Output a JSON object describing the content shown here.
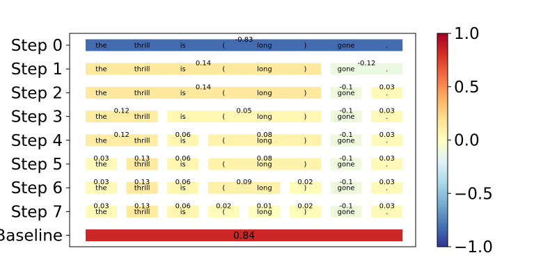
{
  "chart_data": {
    "type": "heatmap",
    "title": "",
    "xlabel": "",
    "ylabel": "",
    "tokens": [
      "the",
      "thrill",
      "is",
      "(",
      "long",
      ")",
      "gone",
      "."
    ],
    "rows": [
      {
        "label": "Step 0",
        "segments": [
          {
            "start": 0,
            "end": 7,
            "value": -0.83,
            "value_label": "-0.83"
          }
        ]
      },
      {
        "label": "Step 1",
        "segments": [
          {
            "start": 0,
            "end": 5,
            "value": 0.14,
            "value_label": "0.14"
          },
          {
            "start": 6,
            "end": 7,
            "value": -0.12,
            "value_label": "-0.12"
          }
        ]
      },
      {
        "label": "Step 2",
        "segments": [
          {
            "start": 0,
            "end": 5,
            "value": 0.14,
            "value_label": "0.14"
          },
          {
            "start": 6,
            "end": 6,
            "value": -0.1,
            "value_label": "-0.1"
          },
          {
            "start": 7,
            "end": 7,
            "value": 0.03,
            "value_label": "0.03"
          }
        ]
      },
      {
        "label": "Step 3",
        "segments": [
          {
            "start": 0,
            "end": 1,
            "value": 0.12,
            "value_label": "0.12"
          },
          {
            "start": 2,
            "end": 5,
            "value": 0.05,
            "value_label": "0.05"
          },
          {
            "start": 6,
            "end": 6,
            "value": -0.1,
            "value_label": "-0.1"
          },
          {
            "start": 7,
            "end": 7,
            "value": 0.03,
            "value_label": "0.03"
          }
        ]
      },
      {
        "label": "Step 4",
        "segments": [
          {
            "start": 0,
            "end": 1,
            "value": 0.12,
            "value_label": "0.12"
          },
          {
            "start": 2,
            "end": 2,
            "value": 0.06,
            "value_label": "0.06"
          },
          {
            "start": 3,
            "end": 5,
            "value": 0.08,
            "value_label": "0.08"
          },
          {
            "start": 6,
            "end": 6,
            "value": -0.1,
            "value_label": "-0.1"
          },
          {
            "start": 7,
            "end": 7,
            "value": 0.03,
            "value_label": "0.03"
          }
        ]
      },
      {
        "label": "Step 5",
        "segments": [
          {
            "start": 0,
            "end": 0,
            "value": 0.03,
            "value_label": "0.03"
          },
          {
            "start": 1,
            "end": 1,
            "value": 0.13,
            "value_label": "0.13"
          },
          {
            "start": 2,
            "end": 2,
            "value": 0.06,
            "value_label": "0.06"
          },
          {
            "start": 3,
            "end": 5,
            "value": 0.08,
            "value_label": "0.08"
          },
          {
            "start": 6,
            "end": 6,
            "value": -0.1,
            "value_label": "-0.1"
          },
          {
            "start": 7,
            "end": 7,
            "value": 0.03,
            "value_label": "0.03"
          }
        ]
      },
      {
        "label": "Step 6",
        "segments": [
          {
            "start": 0,
            "end": 0,
            "value": 0.03,
            "value_label": "0.03"
          },
          {
            "start": 1,
            "end": 1,
            "value": 0.13,
            "value_label": "0.13"
          },
          {
            "start": 2,
            "end": 2,
            "value": 0.06,
            "value_label": "0.06"
          },
          {
            "start": 3,
            "end": 4,
            "value": 0.09,
            "value_label": "0.09"
          },
          {
            "start": 5,
            "end": 5,
            "value": 0.02,
            "value_label": "0.02"
          },
          {
            "start": 6,
            "end": 6,
            "value": -0.1,
            "value_label": "-0.1"
          },
          {
            "start": 7,
            "end": 7,
            "value": 0.03,
            "value_label": "0.03"
          }
        ]
      },
      {
        "label": "Step 7",
        "segments": [
          {
            "start": 0,
            "end": 0,
            "value": 0.03,
            "value_label": "0.03"
          },
          {
            "start": 1,
            "end": 1,
            "value": 0.13,
            "value_label": "0.13"
          },
          {
            "start": 2,
            "end": 2,
            "value": 0.06,
            "value_label": "0.06"
          },
          {
            "start": 3,
            "end": 3,
            "value": 0.02,
            "value_label": "0.02"
          },
          {
            "start": 4,
            "end": 4,
            "value": 0.01,
            "value_label": "0.01"
          },
          {
            "start": 5,
            "end": 5,
            "value": 0.02,
            "value_label": "0.02"
          },
          {
            "start": 6,
            "end": 6,
            "value": -0.1,
            "value_label": "-0.1"
          },
          {
            "start": 7,
            "end": 7,
            "value": 0.03,
            "value_label": "0.03"
          }
        ]
      }
    ],
    "baseline": {
      "label": "Baseline",
      "value": 0.84,
      "value_label": "0.84"
    },
    "colorbar": {
      "colormap": "RdYlBu_r",
      "range": [
        -1.0,
        1.0
      ],
      "ticks": [
        1.0,
        0.5,
        0.0,
        -0.5,
        -1.0
      ],
      "tick_labels": [
        "1.0",
        "0.5",
        "0.0",
        "−0.5",
        "−1.0"
      ]
    },
    "grid": false,
    "legend": "none"
  }
}
